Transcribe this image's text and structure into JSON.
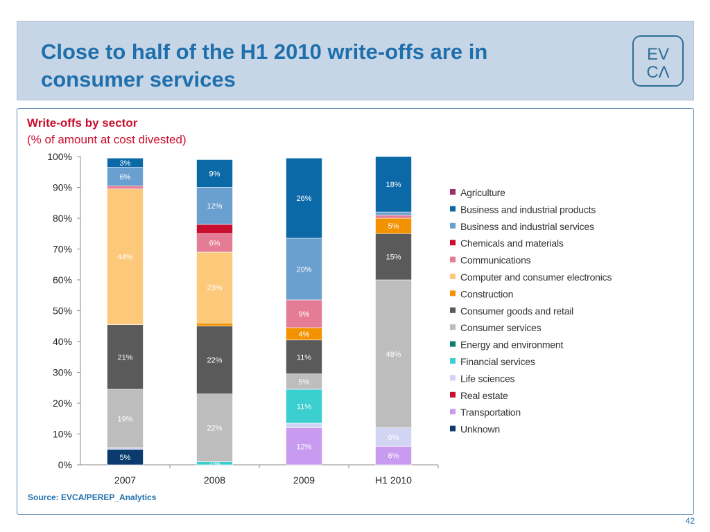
{
  "header": {
    "title_line1": "Close to half of the H1 2010 write-offs are in",
    "title_line2": "consumer services",
    "logo_top": "EV",
    "logo_bottom": "CΛ"
  },
  "chart_title": "Write-offs by sector",
  "chart_subtitle": "(% of amount at cost divested)",
  "source": "Source: EVCA/PEREP_Analytics",
  "page_number": "42",
  "chart_data": {
    "type": "bar",
    "stacked": true,
    "title": "Write-offs by sector",
    "subtitle": "(% of amount at cost divested)",
    "categories": [
      "2007",
      "2008",
      "2009",
      "H1 2010"
    ],
    "ylim": [
      0,
      100
    ],
    "y_ticks": [
      "0%",
      "10%",
      "20%",
      "30%",
      "40%",
      "50%",
      "60%",
      "70%",
      "80%",
      "90%",
      "100%"
    ],
    "legend_position": "right",
    "series": [
      {
        "name": "Unknown",
        "color": "#0b3b6e",
        "values": [
          5,
          0,
          0,
          0
        ],
        "labels": [
          "5%",
          "",
          "",
          ""
        ]
      },
      {
        "name": "Transportation",
        "color": "#c89bf0",
        "values": [
          0,
          0,
          12,
          6
        ],
        "labels": [
          "",
          "",
          "12%",
          "6%"
        ]
      },
      {
        "name": "Real estate",
        "color": "#c8102e",
        "values": [
          0,
          0,
          0,
          0
        ],
        "labels": [
          "",
          "",
          "",
          ""
        ]
      },
      {
        "name": "Life sciences",
        "color": "#d2d4f4",
        "values": [
          0.5,
          0,
          1.5,
          6
        ],
        "labels": [
          "",
          "",
          "",
          "6%"
        ]
      },
      {
        "name": "Financial services",
        "color": "#3ccfcf",
        "values": [
          0,
          1,
          11,
          0
        ],
        "labels": [
          "",
          "1%",
          "11%",
          ""
        ]
      },
      {
        "name": "Energy and environment",
        "color": "#0e7b78",
        "values": [
          0,
          0,
          0,
          0
        ],
        "labels": [
          "",
          "",
          "",
          ""
        ]
      },
      {
        "name": "Consumer services",
        "color": "#bdbdbd",
        "values": [
          19,
          22,
          5,
          48
        ],
        "labels": [
          "19%",
          "22%",
          "5%",
          "48%"
        ]
      },
      {
        "name": "Consumer goods and retail",
        "color": "#5a5a5a",
        "values": [
          21,
          22,
          11,
          15
        ],
        "labels": [
          "21%",
          "22%",
          "11%",
          "15%"
        ]
      },
      {
        "name": "Construction",
        "color": "#f39200",
        "values": [
          0,
          1,
          4,
          5
        ],
        "labels": [
          "",
          "",
          "4%",
          "5%"
        ]
      },
      {
        "name": "Computer and consumer electronics",
        "color": "#fcc97b",
        "values": [
          44,
          23,
          0,
          0
        ],
        "labels": [
          "44%",
          "23%",
          "",
          ""
        ]
      },
      {
        "name": "Communications",
        "color": "#e47c96",
        "values": [
          1,
          6,
          9,
          1
        ],
        "labels": [
          "",
          "6%",
          "9%",
          ""
        ]
      },
      {
        "name": "Chemicals and materials",
        "color": "#c8102e",
        "values": [
          0,
          3,
          0,
          0
        ],
        "labels": [
          "",
          "",
          "",
          ""
        ]
      },
      {
        "name": "Business and industrial services",
        "color": "#6aa0d0",
        "values": [
          6,
          12,
          20,
          1
        ],
        "labels": [
          "6%",
          "12%",
          "20%",
          ""
        ]
      },
      {
        "name": "Business and industrial products",
        "color": "#0c69a8",
        "values": [
          3,
          9,
          26,
          18
        ],
        "labels": [
          "3%",
          "9%",
          "26%",
          "18%"
        ]
      },
      {
        "name": "Agriculture",
        "color": "#9b2d67",
        "values": [
          0,
          0,
          0,
          0
        ],
        "labels": [
          "",
          "",
          "",
          ""
        ]
      }
    ],
    "legend": [
      {
        "name": "Agriculture",
        "color": "#9b2d67"
      },
      {
        "name": "Business and industrial products",
        "color": "#0c69a8"
      },
      {
        "name": "Business and industrial services",
        "color": "#6aa0d0"
      },
      {
        "name": "Chemicals and materials",
        "color": "#c8102e"
      },
      {
        "name": "Communications",
        "color": "#e47c96"
      },
      {
        "name": "Computer and consumer electronics",
        "color": "#fcc97b"
      },
      {
        "name": "Construction",
        "color": "#f39200"
      },
      {
        "name": "Consumer goods and retail",
        "color": "#5a5a5a"
      },
      {
        "name": "Consumer services",
        "color": "#bdbdbd"
      },
      {
        "name": "Energy and environment",
        "color": "#0e7b78"
      },
      {
        "name": "Financial services",
        "color": "#3ccfcf"
      },
      {
        "name": "Life sciences",
        "color": "#d2d4f4"
      },
      {
        "name": "Real estate",
        "color": "#c8102e"
      },
      {
        "name": "Transportation",
        "color": "#c89bf0"
      },
      {
        "name": "Unknown",
        "color": "#0b3b6e"
      }
    ]
  }
}
